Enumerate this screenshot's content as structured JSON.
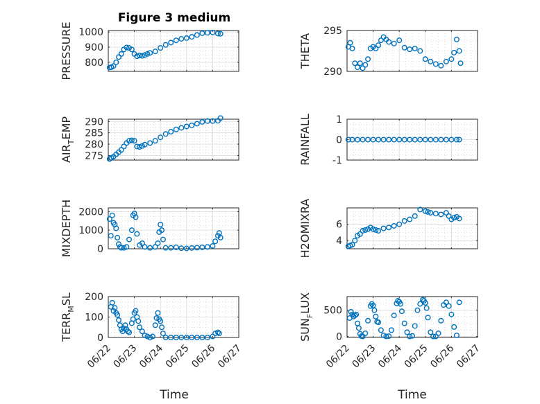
{
  "figure": {
    "title": "Figure 3 medium",
    "marker_color": "#0072BD",
    "xlabel": "Time"
  },
  "chart_data": [
    {
      "type": "scatter",
      "ylabel": "PRESSURE",
      "ylabel_sub": "",
      "ylabel_tail": "",
      "title": "Figure 3 medium",
      "xlim": [
        0,
        5
      ],
      "ylim": [
        740,
        1010
      ],
      "yticks": [
        800,
        900,
        1000
      ],
      "ytick_labels": [
        "800",
        "900",
        "1000"
      ],
      "xticks": [
        0,
        1,
        2,
        3,
        4,
        5
      ],
      "xtick_labels": [],
      "x": [
        0.05,
        0.12,
        0.2,
        0.3,
        0.4,
        0.5,
        0.6,
        0.7,
        0.8,
        0.9,
        1.0,
        1.1,
        1.2,
        1.3,
        1.4,
        1.5,
        1.6,
        1.8,
        2.0,
        2.2,
        2.4,
        2.6,
        2.8,
        3.0,
        3.2,
        3.4,
        3.6,
        3.8,
        4.0,
        4.2,
        4.3
      ],
      "y": [
        765,
        768,
        775,
        800,
        835,
        855,
        885,
        898,
        895,
        885,
        855,
        840,
        845,
        843,
        848,
        855,
        862,
        872,
        895,
        915,
        930,
        945,
        955,
        960,
        968,
        980,
        992,
        995,
        997,
        990,
        988
      ]
    },
    {
      "type": "scatter",
      "ylabel": "THETA",
      "ylabel_sub": "",
      "ylabel_tail": "",
      "xlim": [
        0,
        5
      ],
      "ylim": [
        290,
        295
      ],
      "yticks": [
        290,
        295
      ],
      "ytick_labels": [
        "290",
        "295"
      ],
      "xticks": [
        0,
        1,
        2,
        3,
        4,
        5
      ],
      "xtick_labels": [],
      "x": [
        0.05,
        0.12,
        0.2,
        0.3,
        0.4,
        0.5,
        0.6,
        0.7,
        0.8,
        0.9,
        1.0,
        1.1,
        1.2,
        1.3,
        1.4,
        1.5,
        1.6,
        1.8,
        2.0,
        2.2,
        2.4,
        2.6,
        2.8,
        3.0,
        3.2,
        3.4,
        3.6,
        3.8,
        4.0,
        4.1,
        4.2,
        4.3,
        4.35
      ],
      "y": [
        293.0,
        293.5,
        292.8,
        291.0,
        290.5,
        291.0,
        290.4,
        290.8,
        291.5,
        292.8,
        293.0,
        292.8,
        293.2,
        293.8,
        294.2,
        293.9,
        293.6,
        293.4,
        293.8,
        292.9,
        292.7,
        292.8,
        292.5,
        291.5,
        291.2,
        290.9,
        290.7,
        291.2,
        291.5,
        292.3,
        293.9,
        292.5,
        291.0
      ]
    },
    {
      "type": "scatter",
      "ylabel": "AIR",
      "ylabel_sub": "T",
      "ylabel_tail": "EMP",
      "xlim": [
        0,
        5
      ],
      "ylim": [
        273,
        291
      ],
      "yticks": [
        275,
        280,
        285,
        290
      ],
      "ytick_labels": [
        "275",
        "280",
        "285",
        "290"
      ],
      "xticks": [
        0,
        1,
        2,
        3,
        4,
        5
      ],
      "xtick_labels": [],
      "x": [
        0.05,
        0.12,
        0.2,
        0.3,
        0.4,
        0.5,
        0.6,
        0.7,
        0.8,
        0.9,
        1.0,
        1.1,
        1.2,
        1.3,
        1.4,
        1.6,
        1.8,
        2.0,
        2.2,
        2.4,
        2.6,
        2.8,
        3.0,
        3.2,
        3.4,
        3.6,
        3.8,
        4.0,
        4.2,
        4.3
      ],
      "y": [
        273.5,
        274,
        274.5,
        275.5,
        276.5,
        277.5,
        279,
        280.5,
        281.5,
        281.7,
        281.5,
        279,
        278.8,
        279.2,
        279.8,
        280.5,
        281.5,
        283,
        284.5,
        285.5,
        286.5,
        287.2,
        287.8,
        288.3,
        289,
        289.8,
        290.2,
        290.2,
        290.3,
        291.5
      ]
    },
    {
      "type": "scatter",
      "ylabel": "RAINFALL",
      "ylabel_sub": "",
      "ylabel_tail": "",
      "xlim": [
        0,
        5
      ],
      "ylim": [
        -1,
        1
      ],
      "yticks": [
        -1,
        0,
        1
      ],
      "ytick_labels": [
        "-1",
        "0",
        "1"
      ],
      "xticks": [
        0,
        1,
        2,
        3,
        4,
        5
      ],
      "xtick_labels": [],
      "x": [
        0.05,
        0.2,
        0.4,
        0.6,
        0.8,
        1.0,
        1.2,
        1.4,
        1.6,
        1.8,
        2.0,
        2.2,
        2.4,
        2.6,
        2.8,
        3.0,
        3.2,
        3.4,
        3.6,
        3.8,
        4.0,
        4.2,
        4.3
      ],
      "y": [
        0,
        0,
        0,
        0,
        0,
        0,
        0,
        0,
        0,
        0,
        0,
        0,
        0,
        0,
        0,
        0,
        0,
        0,
        0,
        0,
        0,
        0,
        0
      ]
    },
    {
      "type": "scatter",
      "ylabel": "MIXDEPTH",
      "ylabel_sub": "",
      "ylabel_tail": "",
      "xlim": [
        0,
        5
      ],
      "ylim": [
        0,
        2200
      ],
      "yticks": [
        0,
        1000,
        2000
      ],
      "ytick_labels": [
        "0",
        "1000",
        "2000"
      ],
      "xticks": [
        0,
        1,
        2,
        3,
        4,
        5
      ],
      "xtick_labels": [],
      "x": [
        0.05,
        0.1,
        0.15,
        0.2,
        0.25,
        0.3,
        0.35,
        0.4,
        0.45,
        0.5,
        0.6,
        0.7,
        0.8,
        0.9,
        0.95,
        1.0,
        1.05,
        1.1,
        1.2,
        1.3,
        1.4,
        1.6,
        1.8,
        1.9,
        1.95,
        2.0,
        2.05,
        2.1,
        2.2,
        2.4,
        2.6,
        2.8,
        3.0,
        3.2,
        3.4,
        3.6,
        3.8,
        4.0,
        4.1,
        4.2,
        4.25,
        4.3
      ],
      "y": [
        1600,
        700,
        1800,
        1400,
        1300,
        1100,
        600,
        250,
        100,
        50,
        50,
        100,
        500,
        1000,
        1800,
        1900,
        1700,
        800,
        200,
        300,
        100,
        50,
        100,
        300,
        900,
        1300,
        1000,
        500,
        50,
        50,
        80,
        30,
        20,
        40,
        60,
        80,
        100,
        150,
        400,
        700,
        850,
        600
      ]
    },
    {
      "type": "scatter",
      "ylabel": "H2OMIXRA",
      "ylabel_sub": "",
      "ylabel_tail": "",
      "xlim": [
        0,
        5
      ],
      "ylim": [
        3,
        8
      ],
      "yticks": [
        4,
        6
      ],
      "ytick_labels": [
        "4",
        "6"
      ],
      "xticks": [
        0,
        1,
        2,
        3,
        4,
        5
      ],
      "xtick_labels": [],
      "x": [
        0.05,
        0.12,
        0.2,
        0.3,
        0.4,
        0.5,
        0.6,
        0.7,
        0.8,
        0.9,
        1.0,
        1.1,
        1.2,
        1.4,
        1.6,
        1.8,
        2.0,
        2.2,
        2.4,
        2.6,
        2.8,
        3.0,
        3.1,
        3.2,
        3.4,
        3.6,
        3.8,
        3.9,
        4.0,
        4.1,
        4.2,
        4.3
      ],
      "y": [
        3.3,
        3.4,
        3.5,
        4.0,
        4.6,
        4.8,
        5.2,
        5.3,
        5.4,
        5.6,
        5.4,
        5.3,
        5.2,
        5.5,
        5.6,
        5.8,
        6.0,
        6.4,
        6.6,
        7.0,
        7.8,
        7.6,
        7.5,
        7.4,
        7.3,
        7.2,
        7.4,
        7.0,
        6.6,
        6.8,
        6.9,
        6.7
      ]
    },
    {
      "type": "scatter",
      "ylabel": "TERR",
      "ylabel_sub": "M",
      "ylabel_tail": "SL",
      "xlim": [
        0,
        5
      ],
      "ylim": [
        0,
        200
      ],
      "yticks": [
        0,
        100,
        200
      ],
      "ytick_labels": [
        "0",
        "100",
        "200"
      ],
      "xticks": [
        0,
        1,
        2,
        3,
        4,
        5
      ],
      "xtick_labels": [
        "06/22",
        "06/23",
        "06/24",
        "06/25",
        "06/26",
        "06/27"
      ],
      "x": [
        0.1,
        0.15,
        0.2,
        0.25,
        0.3,
        0.35,
        0.4,
        0.45,
        0.5,
        0.55,
        0.6,
        0.65,
        0.7,
        0.75,
        0.8,
        0.9,
        0.95,
        1.0,
        1.05,
        1.1,
        1.15,
        1.2,
        1.3,
        1.4,
        1.5,
        1.6,
        1.7,
        1.8,
        1.85,
        1.9,
        1.95,
        2.0,
        2.05,
        2.1,
        2.2,
        2.4,
        2.6,
        2.8,
        3.0,
        3.2,
        3.4,
        3.6,
        3.8,
        4.0,
        4.1,
        4.2,
        4.25
      ],
      "y": [
        150,
        170,
        130,
        145,
        120,
        110,
        85,
        60,
        40,
        30,
        45,
        60,
        40,
        30,
        25,
        70,
        90,
        120,
        130,
        100,
        80,
        50,
        30,
        10,
        5,
        0,
        5,
        60,
        95,
        120,
        90,
        80,
        50,
        20,
        0,
        0,
        0,
        0,
        0,
        0,
        0,
        0,
        0,
        5,
        20,
        25,
        20
      ]
    },
    {
      "type": "scatter",
      "ylabel": "SUN",
      "ylabel_sub": "F",
      "ylabel_tail": "LUX",
      "xlim": [
        0,
        5
      ],
      "ylim": [
        -20,
        760
      ],
      "yticks": [
        0,
        500
      ],
      "ytick_labels": [
        "0",
        "500"
      ],
      "xticks": [
        0,
        1,
        2,
        3,
        4,
        5
      ],
      "xtick_labels": [
        "06/22",
        "06/23",
        "06/24",
        "06/25",
        "06/26",
        "06/27"
      ],
      "x": [
        0.1,
        0.15,
        0.2,
        0.25,
        0.3,
        0.35,
        0.4,
        0.45,
        0.5,
        0.55,
        0.6,
        0.7,
        0.8,
        0.9,
        0.95,
        1.0,
        1.05,
        1.1,
        1.15,
        1.2,
        1.3,
        1.4,
        1.5,
        1.6,
        1.7,
        1.8,
        1.9,
        1.95,
        2.0,
        2.05,
        2.1,
        2.2,
        2.3,
        2.4,
        2.5,
        2.6,
        2.7,
        2.8,
        2.9,
        2.95,
        3.0,
        3.05,
        3.1,
        3.2,
        3.3,
        3.4,
        3.5,
        3.6,
        3.7,
        3.8,
        3.9,
        4.0,
        4.1,
        4.2,
        4.3
      ],
      "y": [
        350,
        470,
        420,
        380,
        400,
        420,
        250,
        160,
        50,
        5,
        0,
        60,
        300,
        580,
        620,
        590,
        500,
        380,
        280,
        270,
        120,
        20,
        0,
        5,
        120,
        400,
        630,
        680,
        660,
        620,
        480,
        250,
        80,
        0,
        10,
        200,
        500,
        620,
        700,
        680,
        640,
        540,
        360,
        80,
        0,
        0,
        60,
        300,
        600,
        650,
        580,
        420,
        180,
        20,
        650
      ]
    }
  ]
}
